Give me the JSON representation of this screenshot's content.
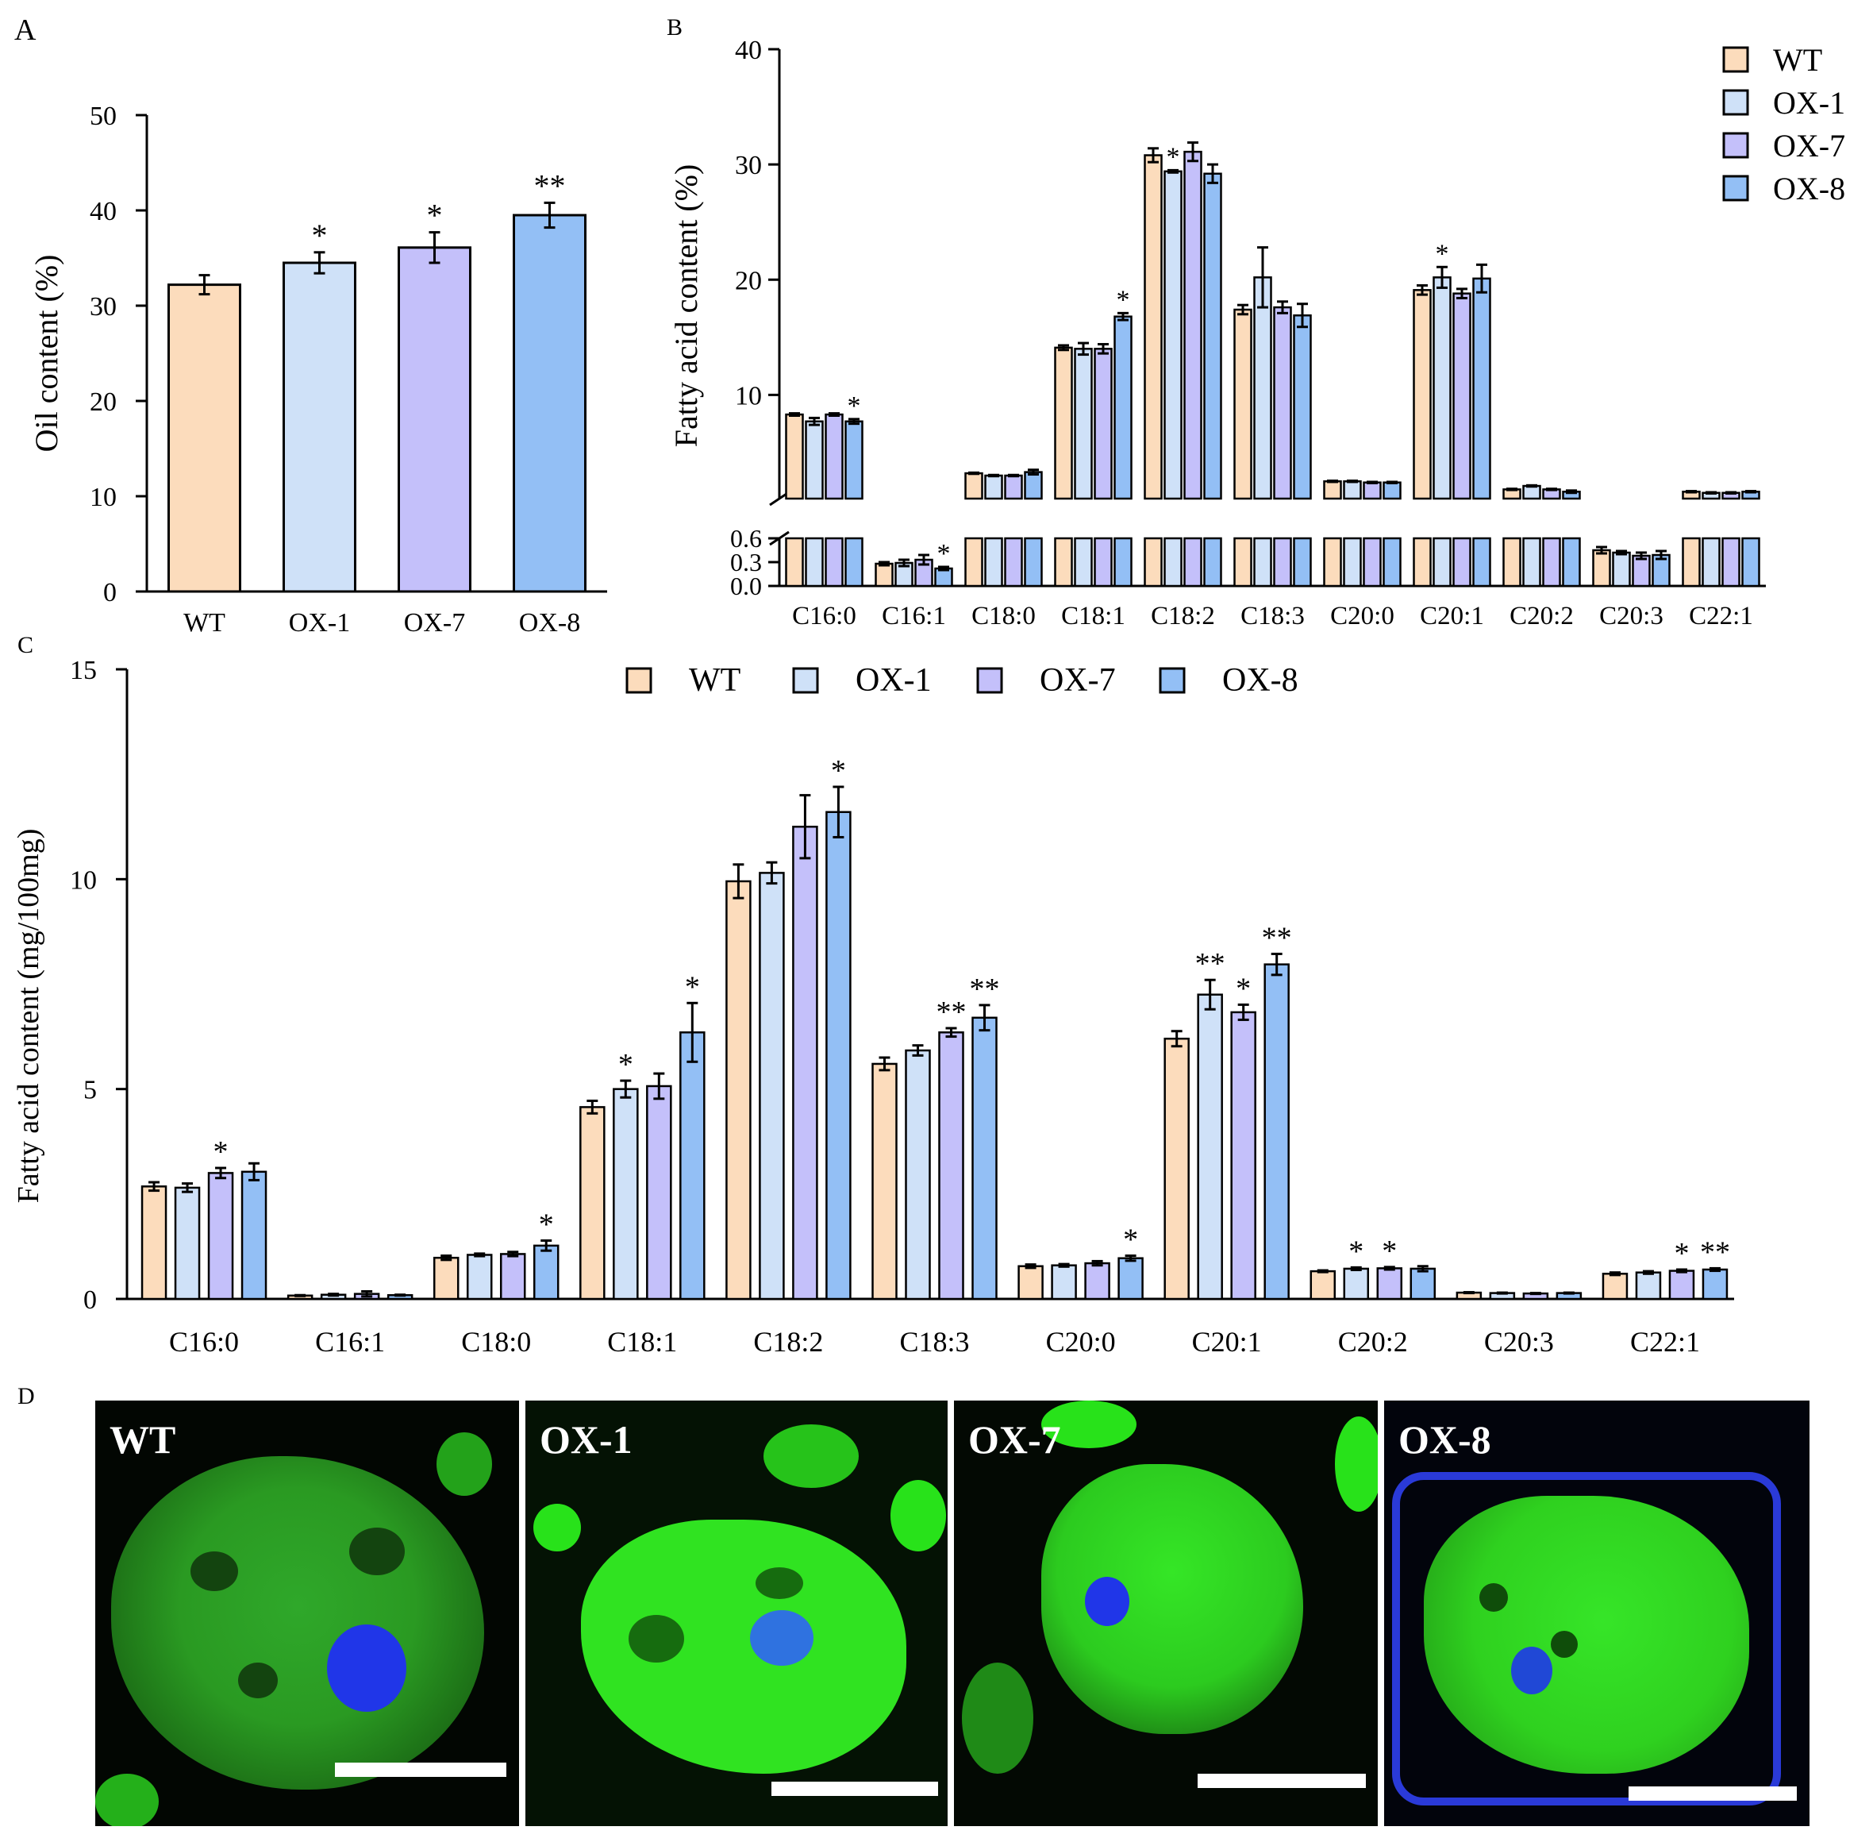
{
  "panel_letters": {
    "a": "A",
    "b": "B",
    "c": "C",
    "d": "D"
  },
  "colors": {
    "WT": "#fcdcbc",
    "OX-1": "#cfe1f8",
    "OX-7": "#c4c0fa",
    "OX-8": "#93bff5",
    "axis": "#000000"
  },
  "legend": [
    "WT",
    "OX-1",
    "OX-7",
    "OX-8"
  ],
  "chart_data": [
    {
      "id": "A",
      "type": "bar",
      "ylabel": "Oil content (%)",
      "ylim": [
        0,
        50
      ],
      "yticks": [
        0,
        10,
        20,
        30,
        40,
        50
      ],
      "categories": [
        "WT",
        "OX-1",
        "OX-7",
        "OX-8"
      ],
      "values": [
        32.2,
        34.5,
        36.1,
        39.5
      ],
      "errors": [
        1.0,
        1.1,
        1.6,
        1.3
      ],
      "significance": [
        "",
        "*",
        "*",
        "**"
      ]
    },
    {
      "id": "B",
      "type": "bar",
      "ylabel": "Fatty acid content (%)",
      "y_axis_break": true,
      "ylim_lower": [
        0,
        0.6
      ],
      "yticks_lower": [
        "0.0",
        "0.3",
        "0.6"
      ],
      "ylim_upper": [
        1,
        40
      ],
      "yticks_upper": [
        10,
        20,
        30,
        40
      ],
      "categories": [
        "C16:0",
        "C16:1",
        "C18:0",
        "C18:1",
        "C18:2",
        "C18:3",
        "C20:0",
        "C20:1",
        "C20:2",
        "C20:3",
        "C22:1"
      ],
      "series": [
        {
          "name": "WT",
          "values": [
            8.3,
            0.28,
            3.2,
            14.1,
            30.8,
            17.4,
            2.5,
            19.1,
            1.8,
            0.45,
            1.6
          ],
          "errors": [
            0.1,
            0.02,
            0.05,
            0.2,
            0.6,
            0.4,
            0.05,
            0.4,
            0.05,
            0.04,
            0.05
          ],
          "significance": [
            "",
            "",
            "",
            "",
            "",
            "",
            "",
            "",
            "",
            "",
            ""
          ]
        },
        {
          "name": "OX-1",
          "values": [
            7.7,
            0.29,
            3.0,
            14.0,
            29.4,
            20.2,
            2.5,
            20.2,
            2.1,
            0.42,
            1.5
          ],
          "errors": [
            0.3,
            0.04,
            0.05,
            0.5,
            0.1,
            2.6,
            0.05,
            0.9,
            0.05,
            0.02,
            0.05
          ],
          "significance": [
            "",
            "",
            "",
            "",
            "*",
            "",
            "",
            "*",
            "",
            "",
            ""
          ]
        },
        {
          "name": "OX-7",
          "values": [
            8.3,
            0.33,
            3.0,
            14.0,
            31.1,
            17.6,
            2.4,
            18.8,
            1.8,
            0.38,
            1.5
          ],
          "errors": [
            0.1,
            0.06,
            0.05,
            0.4,
            0.8,
            0.5,
            0.05,
            0.4,
            0.05,
            0.04,
            0.05
          ],
          "significance": [
            "",
            "",
            "",
            "",
            "",
            "",
            "",
            "",
            "",
            "",
            ""
          ]
        },
        {
          "name": "OX-8",
          "values": [
            7.7,
            0.22,
            3.3,
            16.8,
            29.2,
            16.9,
            2.4,
            20.1,
            1.6,
            0.39,
            1.6
          ],
          "errors": [
            0.2,
            0.02,
            0.2,
            0.3,
            0.8,
            1.0,
            0.05,
            1.2,
            0.1,
            0.05,
            0.05
          ],
          "significance": [
            "*",
            "*",
            "",
            "*",
            "",
            "",
            "",
            "",
            "",
            "",
            ""
          ]
        }
      ]
    },
    {
      "id": "C",
      "type": "bar",
      "ylabel": "Fatty acid content (mg/100mg)",
      "ylim": [
        0,
        15
      ],
      "yticks": [
        0,
        5,
        10,
        15
      ],
      "categories": [
        "C16:0",
        "C16:1",
        "C18:0",
        "C18:1",
        "C18:2",
        "C18:3",
        "C20:0",
        "C20:1",
        "C20:2",
        "C20:3",
        "C22:1"
      ],
      "series": [
        {
          "name": "WT",
          "values": [
            2.68,
            0.08,
            0.98,
            4.57,
            9.95,
            5.6,
            0.78,
            6.2,
            0.66,
            0.15,
            0.6
          ],
          "errors": [
            0.1,
            0.01,
            0.05,
            0.15,
            0.4,
            0.15,
            0.04,
            0.18,
            0.02,
            0.01,
            0.03
          ],
          "significance": [
            "",
            "",
            "",
            "",
            "",
            "",
            "",
            "",
            "",
            "",
            ""
          ]
        },
        {
          "name": "OX-1",
          "values": [
            2.65,
            0.1,
            1.05,
            5.0,
            10.15,
            5.92,
            0.8,
            7.25,
            0.72,
            0.14,
            0.63
          ],
          "errors": [
            0.1,
            0.02,
            0.03,
            0.2,
            0.25,
            0.12,
            0.03,
            0.35,
            0.03,
            0.01,
            0.03
          ],
          "significance": [
            "",
            "",
            "",
            "*",
            "",
            "",
            "",
            "**",
            "*",
            "",
            ""
          ]
        },
        {
          "name": "OX-7",
          "values": [
            3.0,
            0.12,
            1.07,
            5.07,
            11.25,
            6.35,
            0.85,
            6.83,
            0.73,
            0.13,
            0.67
          ],
          "errors": [
            0.12,
            0.06,
            0.05,
            0.3,
            0.75,
            0.1,
            0.05,
            0.18,
            0.03,
            0.01,
            0.03
          ],
          "significance": [
            "*",
            "",
            "",
            "",
            "",
            "**",
            "",
            "*",
            "*",
            "",
            "*"
          ]
        },
        {
          "name": "OX-8",
          "values": [
            3.03,
            0.09,
            1.27,
            6.35,
            11.6,
            6.7,
            0.97,
            7.97,
            0.72,
            0.14,
            0.7
          ],
          "errors": [
            0.2,
            0.01,
            0.12,
            0.7,
            0.6,
            0.3,
            0.06,
            0.25,
            0.06,
            0.01,
            0.03
          ],
          "significance": [
            "",
            "",
            "*",
            "*",
            "*",
            "**",
            "*",
            "**",
            "",
            "",
            "**"
          ]
        }
      ]
    }
  ],
  "micrographs": [
    {
      "label": "WT"
    },
    {
      "label": "OX-1"
    },
    {
      "label": "OX-7"
    },
    {
      "label": "OX-8"
    }
  ]
}
